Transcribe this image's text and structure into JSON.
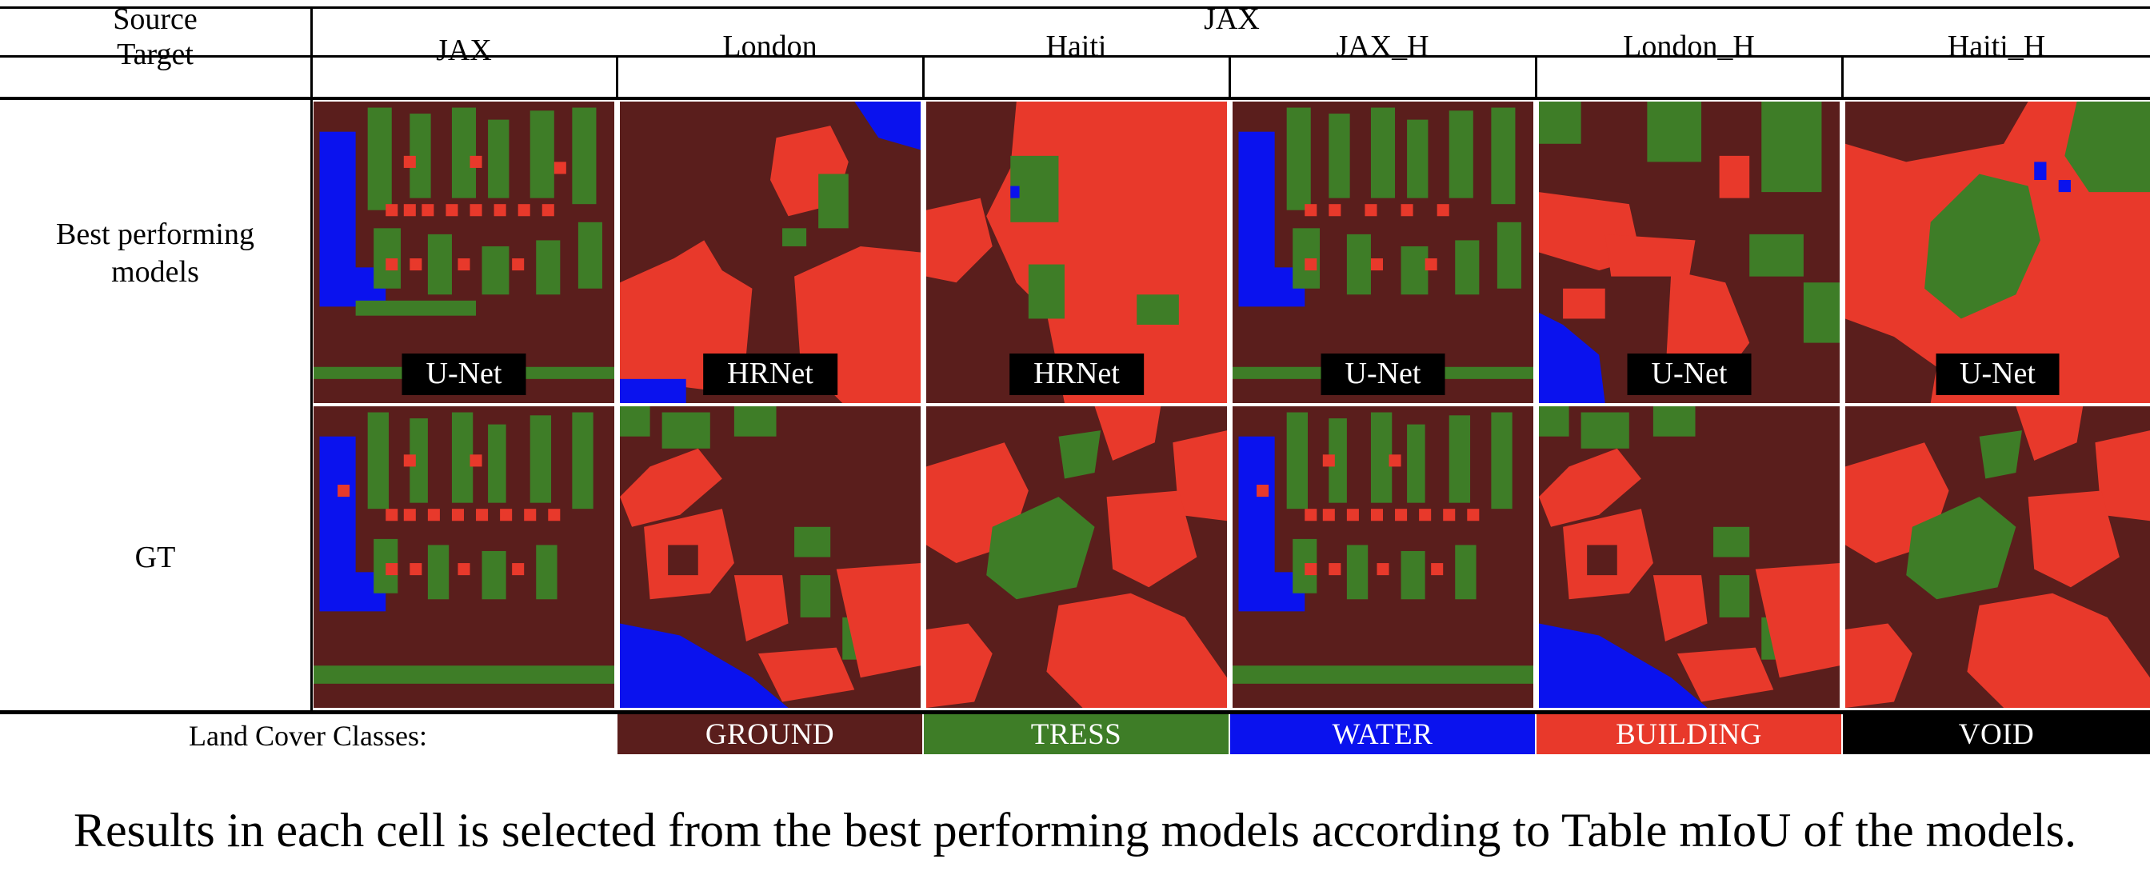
{
  "table": {
    "source_label": "Source",
    "source_value": "JAX",
    "target_label": "Target",
    "targets": [
      "JAX",
      "London",
      "Haiti",
      "JAX_H",
      "London_H",
      "Haiti_H"
    ],
    "row_labels": {
      "predictions": "Best performing models",
      "ground_truth": "GT"
    },
    "best_models": [
      "U-Net",
      "HRNet",
      "HRNet",
      "U-Net",
      "U-Net",
      "U-Net"
    ]
  },
  "legend": {
    "title": "Land Cover Classes:",
    "classes": [
      {
        "label": "GROUND",
        "color": "#5a1e1c"
      },
      {
        "label": "TRESS",
        "color": "#3e7d27"
      },
      {
        "label": "WATER",
        "color": "#0a12ee"
      },
      {
        "label": "BUILDING",
        "color": "#e8392b"
      },
      {
        "label": "VOID",
        "color": "#000000"
      }
    ]
  },
  "caption": "Results in each cell is selected from the best performing models according to Table mIoU of the models.",
  "class_colors": {
    "ground": "#5a1e1c",
    "tree": "#3e7d27",
    "water": "#0a12ee",
    "building": "#e8392b"
  }
}
